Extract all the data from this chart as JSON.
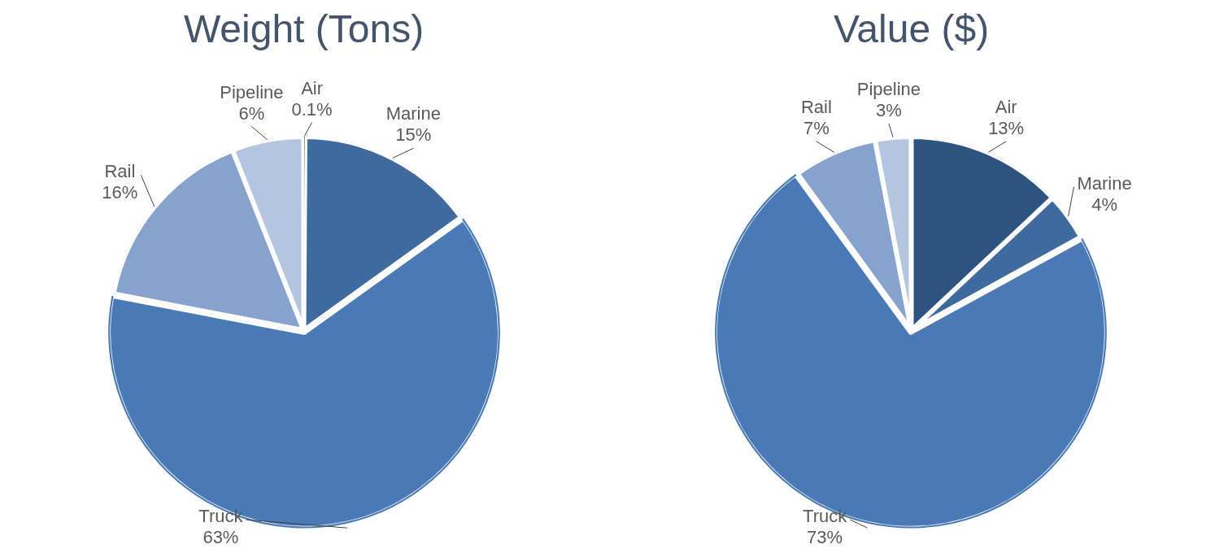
{
  "chart_data": [
    {
      "type": "pie",
      "title": "Weight (Tons)",
      "categories": [
        "Air",
        "Marine",
        "Truck",
        "Rail",
        "Pipeline"
      ],
      "values": [
        0.1,
        15,
        63,
        16,
        6
      ],
      "colors": [
        "#2f5380",
        "#3f6a9e",
        "#4a7ab5",
        "#87a2cc",
        "#b4c5e0"
      ],
      "value_labels": [
        "0.1%",
        "15%",
        "63%",
        "16%",
        "6%"
      ],
      "legend": false
    },
    {
      "type": "pie",
      "title": "Value ($)",
      "categories": [
        "Air",
        "Marine",
        "Truck",
        "Rail",
        "Pipeline"
      ],
      "values": [
        13,
        4,
        73,
        7,
        3
      ],
      "colors": [
        "#2f5380",
        "#3f6a9e",
        "#4a7ab5",
        "#87a2cc",
        "#b4c5e0"
      ],
      "value_labels": [
        "13%",
        "4%",
        "73%",
        "7%",
        "3%"
      ],
      "legend": false
    }
  ]
}
